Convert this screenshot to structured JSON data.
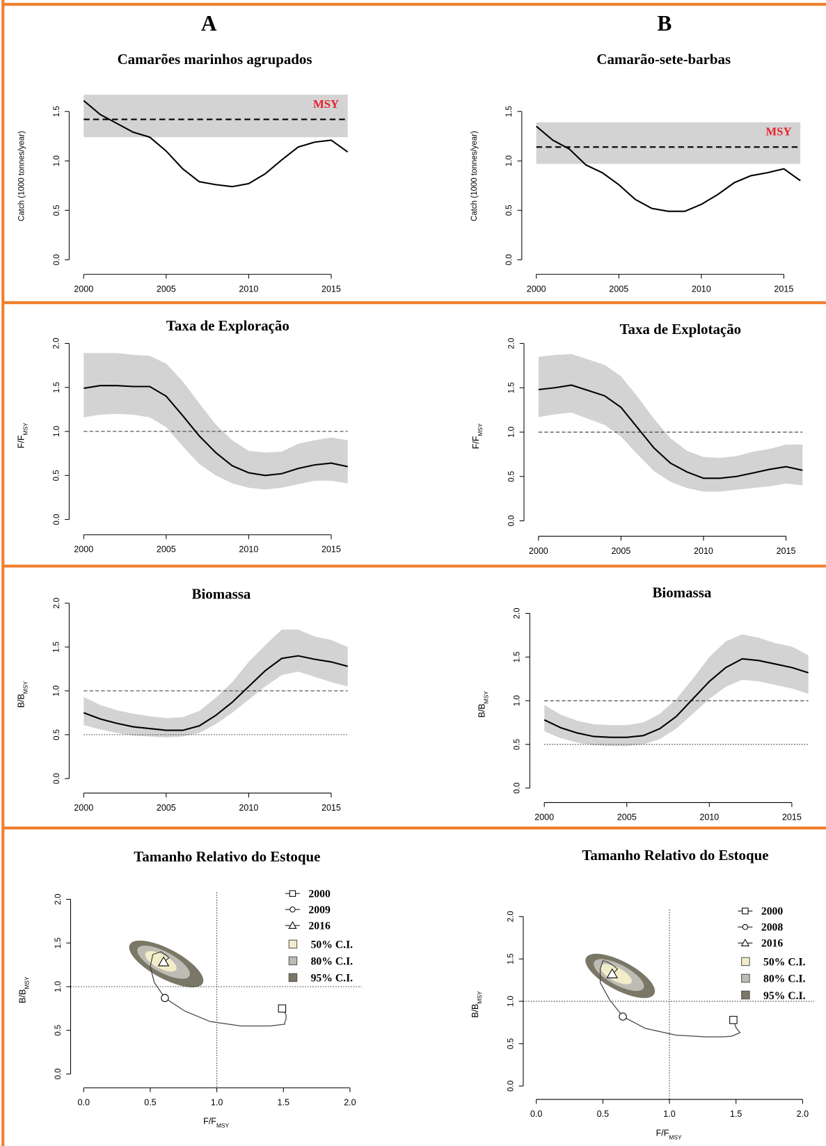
{
  "column_labels": [
    "A",
    "B"
  ],
  "chart_data": [
    {
      "type": "catch",
      "title": "Camarões marinhos agrupados",
      "y_label": "Catch (1000 tonnes/year)",
      "x": [
        2000,
        2001,
        2002,
        2003,
        2004,
        2005,
        2006,
        2007,
        2008,
        2009,
        2010,
        2011,
        2012,
        2013,
        2014,
        2015,
        2016
      ],
      "values": [
        1.61,
        1.47,
        1.38,
        1.29,
        1.24,
        1.1,
        0.92,
        0.79,
        0.76,
        0.74,
        0.77,
        0.87,
        1.01,
        1.14,
        1.19,
        1.21,
        1.09
      ],
      "color": "#000000",
      "msy": 1.42,
      "msy_band": [
        1.24,
        1.67
      ],
      "annotation": "MSY",
      "annotation_color": "#e8202a",
      "band_color": "#d3d3d3",
      "xlim": [
        1999.12,
        2016.76
      ],
      "xticks": [
        2000,
        2005,
        2010,
        2015
      ],
      "ylim": [
        -0.147,
        1.84
      ],
      "yticks": [
        {
          "value": 0,
          "label": "0.0"
        },
        {
          "value": 0.5,
          "label": "0.5"
        },
        {
          "value": 1,
          "label": "1.0"
        },
        {
          "value": 1.5,
          "label": "1.5"
        }
      ]
    },
    {
      "type": "catch",
      "title": "Camarão-sete-barbas",
      "y_label": "Catch (1000 tonnes/year)",
      "x": [
        2000,
        2001,
        2002,
        2003,
        2004,
        2005,
        2006,
        2007,
        2008,
        2009,
        2010,
        2011,
        2012,
        2013,
        2014,
        2015,
        2016
      ],
      "values": [
        1.35,
        1.21,
        1.12,
        0.96,
        0.88,
        0.76,
        0.61,
        0.52,
        0.49,
        0.49,
        0.56,
        0.66,
        0.78,
        0.85,
        0.88,
        0.92,
        0.8
      ],
      "color": "#000000",
      "msy": 1.14,
      "msy_band": [
        0.97,
        1.39
      ],
      "annotation": "MSY",
      "annotation_color": "#e8202a",
      "band_color": "#d3d3d3",
      "xlim": [
        1999.12,
        2016.76
      ],
      "xticks": [
        2000,
        2005,
        2010,
        2015
      ],
      "ylim": [
        -0.147,
        1.84
      ],
      "yticks": [
        {
          "value": 0,
          "label": "0.0"
        },
        {
          "value": 0.5,
          "label": "0.5"
        },
        {
          "value": 1,
          "label": "1.0"
        },
        {
          "value": 1.5,
          "label": "1.5"
        }
      ]
    },
    {
      "type": "ratio",
      "title": "Taxa de Exploração",
      "y_label": "F/F",
      "y_label_subscript": "MSY",
      "x": [
        2000,
        2001,
        2002,
        2003,
        2004,
        2005,
        2006,
        2007,
        2008,
        2009,
        2010,
        2011,
        2012,
        2013,
        2014,
        2015,
        2016
      ],
      "values": [
        1.49,
        1.52,
        1.52,
        1.51,
        1.51,
        1.4,
        1.18,
        0.95,
        0.76,
        0.61,
        0.53,
        0.5,
        0.52,
        0.58,
        0.62,
        0.64,
        0.6
      ],
      "ci_lower": [
        1.16,
        1.19,
        1.2,
        1.19,
        1.16,
        1.05,
        0.83,
        0.63,
        0.5,
        0.41,
        0.36,
        0.34,
        0.36,
        0.4,
        0.44,
        0.44,
        0.41
      ],
      "ci_upper": [
        1.89,
        1.89,
        1.89,
        1.87,
        1.86,
        1.77,
        1.57,
        1.32,
        1.08,
        0.9,
        0.78,
        0.76,
        0.77,
        0.86,
        0.9,
        0.93,
        0.9
      ],
      "color": "#000000",
      "band_color": "#d3d3d3",
      "reference_lines": [
        {
          "value": 1,
          "style": "dashed"
        }
      ],
      "xlim": [
        1999.12,
        2016.76
      ],
      "xticks": [
        2000,
        2005,
        2010,
        2015
      ],
      "ylim": [
        -0.174,
        2.082
      ],
      "yticks": [
        {
          "value": 0,
          "label": "0.0"
        },
        {
          "value": 0.5,
          "label": "0.5"
        },
        {
          "value": 1,
          "label": "1.0"
        },
        {
          "value": 1.5,
          "label": "1.5"
        },
        {
          "value": 2,
          "label": "2.0"
        }
      ]
    },
    {
      "type": "ratio",
      "title": "Taxa de Explotação",
      "y_label": "F/F",
      "y_label_subscript": "MSY",
      "x": [
        2000,
        2001,
        2002,
        2003,
        2004,
        2005,
        2006,
        2007,
        2008,
        2009,
        2010,
        2011,
        2012,
        2013,
        2014,
        2015,
        2016
      ],
      "values": [
        1.48,
        1.5,
        1.53,
        1.47,
        1.41,
        1.28,
        1.05,
        0.82,
        0.65,
        0.55,
        0.48,
        0.48,
        0.5,
        0.54,
        0.58,
        0.61,
        0.57
      ],
      "ci_lower": [
        1.17,
        1.2,
        1.22,
        1.15,
        1.08,
        0.95,
        0.75,
        0.56,
        0.44,
        0.37,
        0.33,
        0.33,
        0.35,
        0.37,
        0.39,
        0.42,
        0.4
      ],
      "ci_upper": [
        1.85,
        1.87,
        1.88,
        1.82,
        1.76,
        1.63,
        1.4,
        1.15,
        0.93,
        0.79,
        0.72,
        0.71,
        0.73,
        0.78,
        0.81,
        0.86,
        0.86
      ],
      "color": "#000000",
      "band_color": "#d3d3d3",
      "reference_lines": [
        {
          "value": 1,
          "style": "dashed"
        }
      ],
      "xlim": [
        1999.12,
        2016.76
      ],
      "xticks": [
        2000,
        2005,
        2010,
        2015
      ],
      "ylim": [
        -0.174,
        2.082
      ],
      "yticks": [
        {
          "value": 0,
          "label": "0.0"
        },
        {
          "value": 0.5,
          "label": "0.5"
        },
        {
          "value": 1,
          "label": "1.0"
        },
        {
          "value": 1.5,
          "label": "1.5"
        },
        {
          "value": 2,
          "label": "2.0"
        }
      ]
    },
    {
      "type": "ratio",
      "title": "Biomassa",
      "y_label": "B/B",
      "y_label_subscript": "MSY",
      "x": [
        2000,
        2001,
        2002,
        2003,
        2004,
        2005,
        2006,
        2007,
        2008,
        2009,
        2010,
        2011,
        2012,
        2013,
        2014,
        2015,
        2016
      ],
      "values": [
        0.75,
        0.68,
        0.63,
        0.59,
        0.57,
        0.55,
        0.55,
        0.6,
        0.72,
        0.87,
        1.05,
        1.23,
        1.37,
        1.4,
        1.36,
        1.33,
        1.28
      ],
      "ci_lower": [
        0.61,
        0.56,
        0.52,
        0.49,
        0.48,
        0.47,
        0.48,
        0.52,
        0.62,
        0.75,
        0.9,
        1.05,
        1.18,
        1.22,
        1.16,
        1.1,
        1.05
      ],
      "ci_upper": [
        0.93,
        0.84,
        0.78,
        0.74,
        0.71,
        0.69,
        0.7,
        0.77,
        0.92,
        1.1,
        1.33,
        1.52,
        1.7,
        1.7,
        1.62,
        1.58,
        1.5
      ],
      "color": "#000000",
      "band_color": "#d3d3d3",
      "reference_lines": [
        {
          "value": 1,
          "style": "dashed"
        },
        {
          "value": 0.5,
          "style": "dotted"
        }
      ],
      "xlim": [
        1999.12,
        2016.76
      ],
      "xticks": [
        2000,
        2005,
        2010,
        2015
      ],
      "ylim": [
        -0.166,
        2.083
      ],
      "yticks": [
        {
          "value": 0,
          "label": "0.0"
        },
        {
          "value": 0.5,
          "label": "0.5"
        },
        {
          "value": 1,
          "label": "1.0"
        },
        {
          "value": 1.5,
          "label": "1.5"
        },
        {
          "value": 2,
          "label": "2.0"
        }
      ]
    },
    {
      "type": "ratio",
      "title": "Biomassa",
      "y_label": "B/B",
      "y_label_subscript": "MSY",
      "x": [
        2000,
        2001,
        2002,
        2003,
        2004,
        2005,
        2006,
        2007,
        2008,
        2009,
        2010,
        2011,
        2012,
        2013,
        2014,
        2015,
        2016
      ],
      "values": [
        0.78,
        0.69,
        0.63,
        0.59,
        0.58,
        0.58,
        0.6,
        0.68,
        0.82,
        1.02,
        1.22,
        1.38,
        1.48,
        1.46,
        1.42,
        1.38,
        1.32
      ],
      "ci_lower": [
        0.65,
        0.57,
        0.52,
        0.49,
        0.48,
        0.48,
        0.5,
        0.56,
        0.68,
        0.85,
        1.02,
        1.16,
        1.24,
        1.22,
        1.18,
        1.14,
        1.08
      ],
      "ci_upper": [
        0.95,
        0.84,
        0.77,
        0.73,
        0.72,
        0.72,
        0.75,
        0.85,
        1.02,
        1.25,
        1.5,
        1.68,
        1.76,
        1.72,
        1.66,
        1.62,
        1.52
      ],
      "color": "#000000",
      "band_color": "#d3d3d3",
      "reference_lines": [
        {
          "value": 1,
          "style": "dashed"
        },
        {
          "value": 0.5,
          "style": "dotted"
        }
      ],
      "xlim": [
        1999.12,
        2016.76
      ],
      "xticks": [
        2000,
        2005,
        2010,
        2015
      ],
      "ylim": [
        -0.166,
        2.083
      ],
      "yticks": [
        {
          "value": 0,
          "label": "0.0"
        },
        {
          "value": 0.5,
          "label": "0.5"
        },
        {
          "value": 1,
          "label": "1.0"
        },
        {
          "value": 1.5,
          "label": "1.5"
        },
        {
          "value": 2,
          "label": "2.0"
        }
      ]
    },
    {
      "type": "kobe",
      "title": "Tamanho Relativo do Estoque",
      "x_label": "F/F",
      "x_label_subscript": "MSY",
      "y_label": "B/B",
      "y_label_subscript": "MSY",
      "x": [
        1.49,
        1.52,
        1.52,
        1.51,
        1.51,
        1.4,
        1.18,
        0.95,
        0.76,
        0.61,
        0.53,
        0.5,
        0.52,
        0.58,
        0.62,
        0.64,
        0.6
      ],
      "y": [
        0.75,
        0.68,
        0.63,
        0.59,
        0.57,
        0.55,
        0.55,
        0.6,
        0.72,
        0.87,
        1.05,
        1.23,
        1.37,
        1.4,
        1.36,
        1.33,
        1.28
      ],
      "color": "#444444",
      "highlights": [
        {
          "label": "2000",
          "x": 1.49,
          "y": 0.75,
          "shape": "square"
        },
        {
          "label": "2009",
          "x": 0.61,
          "y": 0.87,
          "shape": "circle"
        },
        {
          "label": "2016",
          "x": 0.6,
          "y": 1.28,
          "shape": "triangle"
        }
      ],
      "confidence_regions": [
        {
          "name": "50% C.I.",
          "color": "#f2edc9",
          "center": [
            0.58,
            1.29
          ],
          "radius": [
            0.13,
            0.08
          ]
        },
        {
          "name": "80% C.I.",
          "color": "#bdbcb4",
          "center": [
            0.6,
            1.28
          ],
          "radius": [
            0.22,
            0.12
          ]
        },
        {
          "name": "95% C.I.",
          "color": "#7b7767",
          "center": [
            0.62,
            1.26
          ],
          "radius": [
            0.31,
            0.17
          ]
        }
      ],
      "vline": 1,
      "hline": 1,
      "legend": "top-right",
      "xlim": [
        -0.098,
        2.088
      ],
      "ylim": [
        -0.158,
        2.083
      ],
      "xticks": [
        {
          "value": 0,
          "label": "0.0"
        },
        {
          "value": 0.5,
          "label": "0.5"
        },
        {
          "value": 1,
          "label": "1.0"
        },
        {
          "value": 1.5,
          "label": "1.5"
        },
        {
          "value": 2,
          "label": "2.0"
        }
      ],
      "yticks": [
        {
          "value": 0,
          "label": "0.0"
        },
        {
          "value": 0.5,
          "label": "0.5"
        },
        {
          "value": 1,
          "label": "1.0"
        },
        {
          "value": 1.5,
          "label": "1.5"
        },
        {
          "value": 2,
          "label": "2.0"
        }
      ]
    },
    {
      "type": "kobe",
      "title": "Tamanho Relativo do Estoque",
      "x_label": "F/F",
      "x_label_subscript": "MSY",
      "y_label": "B/B",
      "y_label_subscript": "MSY",
      "x": [
        1.48,
        1.5,
        1.53,
        1.47,
        1.41,
        1.28,
        1.05,
        0.82,
        0.65,
        0.55,
        0.48,
        0.48,
        0.5,
        0.54,
        0.58,
        0.61,
        0.57
      ],
      "y": [
        0.78,
        0.69,
        0.63,
        0.59,
        0.58,
        0.58,
        0.6,
        0.68,
        0.82,
        1.02,
        1.22,
        1.38,
        1.48,
        1.46,
        1.42,
        1.38,
        1.32
      ],
      "color": "#444444",
      "highlights": [
        {
          "label": "2000",
          "x": 1.48,
          "y": 0.78,
          "shape": "square"
        },
        {
          "label": "2008",
          "x": 0.65,
          "y": 0.82,
          "shape": "circle"
        },
        {
          "label": "2016",
          "x": 0.57,
          "y": 1.32,
          "shape": "triangle"
        }
      ],
      "confidence_regions": [
        {
          "name": "50% C.I.",
          "color": "#f2edc9",
          "center": [
            0.6,
            1.32
          ],
          "radius": [
            0.13,
            0.08
          ]
        },
        {
          "name": "80% C.I.",
          "color": "#bdbcb4",
          "center": [
            0.62,
            1.31
          ],
          "radius": [
            0.21,
            0.12
          ]
        },
        {
          "name": "95% C.I.",
          "color": "#7b7767",
          "center": [
            0.63,
            1.3
          ],
          "radius": [
            0.29,
            0.17
          ]
        }
      ],
      "vline": 1,
      "hline": 1,
      "legend": "top-right",
      "xlim": [
        -0.098,
        2.088
      ],
      "ylim": [
        -0.158,
        2.083
      ],
      "xticks": [
        {
          "value": 0,
          "label": "0.0"
        },
        {
          "value": 0.5,
          "label": "0.5"
        },
        {
          "value": 1,
          "label": "1.0"
        },
        {
          "value": 1.5,
          "label": "1.5"
        },
        {
          "value": 2,
          "label": "2.0"
        }
      ],
      "yticks": [
        {
          "value": 0,
          "label": "0.0"
        },
        {
          "value": 0.5,
          "label": "0.5"
        },
        {
          "value": 1,
          "label": "1.0"
        },
        {
          "value": 1.5,
          "label": "1.5"
        },
        {
          "value": 2,
          "label": "2.0"
        }
      ]
    }
  ]
}
